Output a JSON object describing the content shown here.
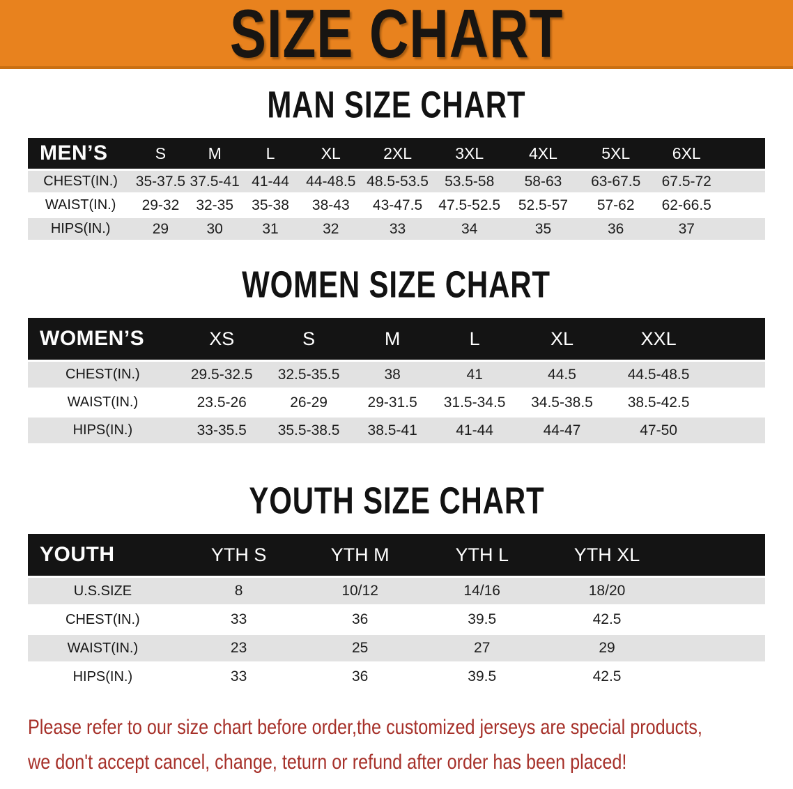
{
  "banner": {
    "title": "SIZE CHART"
  },
  "sections": [
    {
      "id": "men",
      "heading": "MAN SIZE CHART",
      "table": {
        "label": "MEN’S",
        "columns": [
          "S",
          "M",
          "L",
          "XL",
          "2XL",
          "3XL",
          "4XL",
          "5XL",
          "6XL"
        ],
        "rows": [
          {
            "label": "CHEST(IN.)",
            "values": [
              "35-37.5",
              "37.5-41",
              "41-44",
              "44-48.5",
              "48.5-53.5",
              "53.5-58",
              "58-63",
              "63-67.5",
              "67.5-72"
            ]
          },
          {
            "label": "WAIST(IN.)",
            "values": [
              "29-32",
              "32-35",
              "35-38",
              "38-43",
              "43-47.5",
              "47.5-52.5",
              "52.5-57",
              "57-62",
              "62-66.5"
            ]
          },
          {
            "label": "HIPS(IN.)",
            "values": [
              "29",
              "30",
              "31",
              "32",
              "33",
              "34",
              "35",
              "36",
              "37"
            ]
          }
        ]
      }
    },
    {
      "id": "women",
      "heading": "WOMEN SIZE CHART",
      "table": {
        "label": "WOMEN’S",
        "columns": [
          "XS",
          "S",
          "M",
          "L",
          "XL",
          "XXL"
        ],
        "rows": [
          {
            "label": "CHEST(IN.)",
            "values": [
              "29.5-32.5",
              "32.5-35.5",
              "38",
              "41",
              "44.5",
              "44.5-48.5"
            ]
          },
          {
            "label": "WAIST(IN.)",
            "values": [
              "23.5-26",
              "26-29",
              "29-31.5",
              "31.5-34.5",
              "34.5-38.5",
              "38.5-42.5"
            ]
          },
          {
            "label": "HIPS(IN.)",
            "values": [
              "33-35.5",
              "35.5-38.5",
              "38.5-41",
              "41-44",
              "44-47",
              "47-50"
            ]
          }
        ]
      }
    },
    {
      "id": "youth",
      "heading": "YOUTH SIZE CHART",
      "table": {
        "label": "YOUTH",
        "columns": [
          "YTH S",
          "YTH M",
          "YTH L",
          "YTH XL"
        ],
        "rows": [
          {
            "label": "U.S.SIZE",
            "values": [
              "8",
              "10/12",
              "14/16",
              "18/20"
            ]
          },
          {
            "label": "CHEST(IN.)",
            "values": [
              "33",
              "36",
              "39.5",
              "42.5"
            ]
          },
          {
            "label": "WAIST(IN.)",
            "values": [
              "23",
              "25",
              "27",
              "29"
            ]
          },
          {
            "label": "HIPS(IN.)",
            "values": [
              "33",
              "36",
              "39.5",
              "42.5"
            ]
          }
        ]
      }
    }
  ],
  "disclaimer": {
    "lines": [
      "Please refer to our size chart before order,the customized jerseys are special products,",
      "we don't accept cancel, change, teturn or refund after order has been placed!"
    ]
  },
  "colors": {
    "banner_bg": "#E8821E",
    "header_bar_bg": "#141414",
    "row_stripe": "#E2E2E2",
    "disclaimer_text": "#A63029"
  }
}
